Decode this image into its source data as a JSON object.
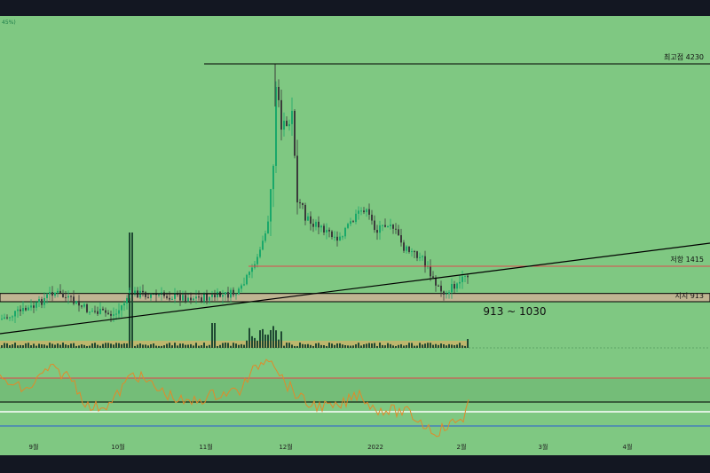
{
  "colors": {
    "background": "#7fc882",
    "frame": "#131722",
    "candle_up": "#1aa86a",
    "candle_down": "#3b3b3b",
    "resistance_line": "#e0474c",
    "support_zone": "#bfb592",
    "trend_line": "#000000",
    "oscillator": "#e08a2a",
    "volume_band": "#c8b46a",
    "volume_bar": "#1f4a33"
  },
  "corner_text": "45%)",
  "annotations": {
    "ath": "최고점 4230",
    "resistance": "저항 1415",
    "support": "지지 913",
    "range": "913 ~ 1030"
  },
  "chart_data": {
    "type": "candlestick",
    "x_tick_labels": [
      "9월",
      "10월",
      "11월",
      "12월",
      "2022",
      "2월",
      "3월",
      "4월"
    ],
    "levels": {
      "all_time_high": 4230,
      "resistance": 1415,
      "support_low": 913,
      "support_high": 1030
    },
    "price_series_approx": [
      {
        "x": "9월",
        "close": 900
      },
      {
        "x": "10월",
        "close": 960
      },
      {
        "x": "11월",
        "close": 1100
      },
      {
        "x": "12월",
        "close": 3000
      },
      {
        "x": "2022",
        "close": 2000
      },
      {
        "x": "2월",
        "close": 1300
      }
    ],
    "grid": false,
    "legend": "none"
  }
}
